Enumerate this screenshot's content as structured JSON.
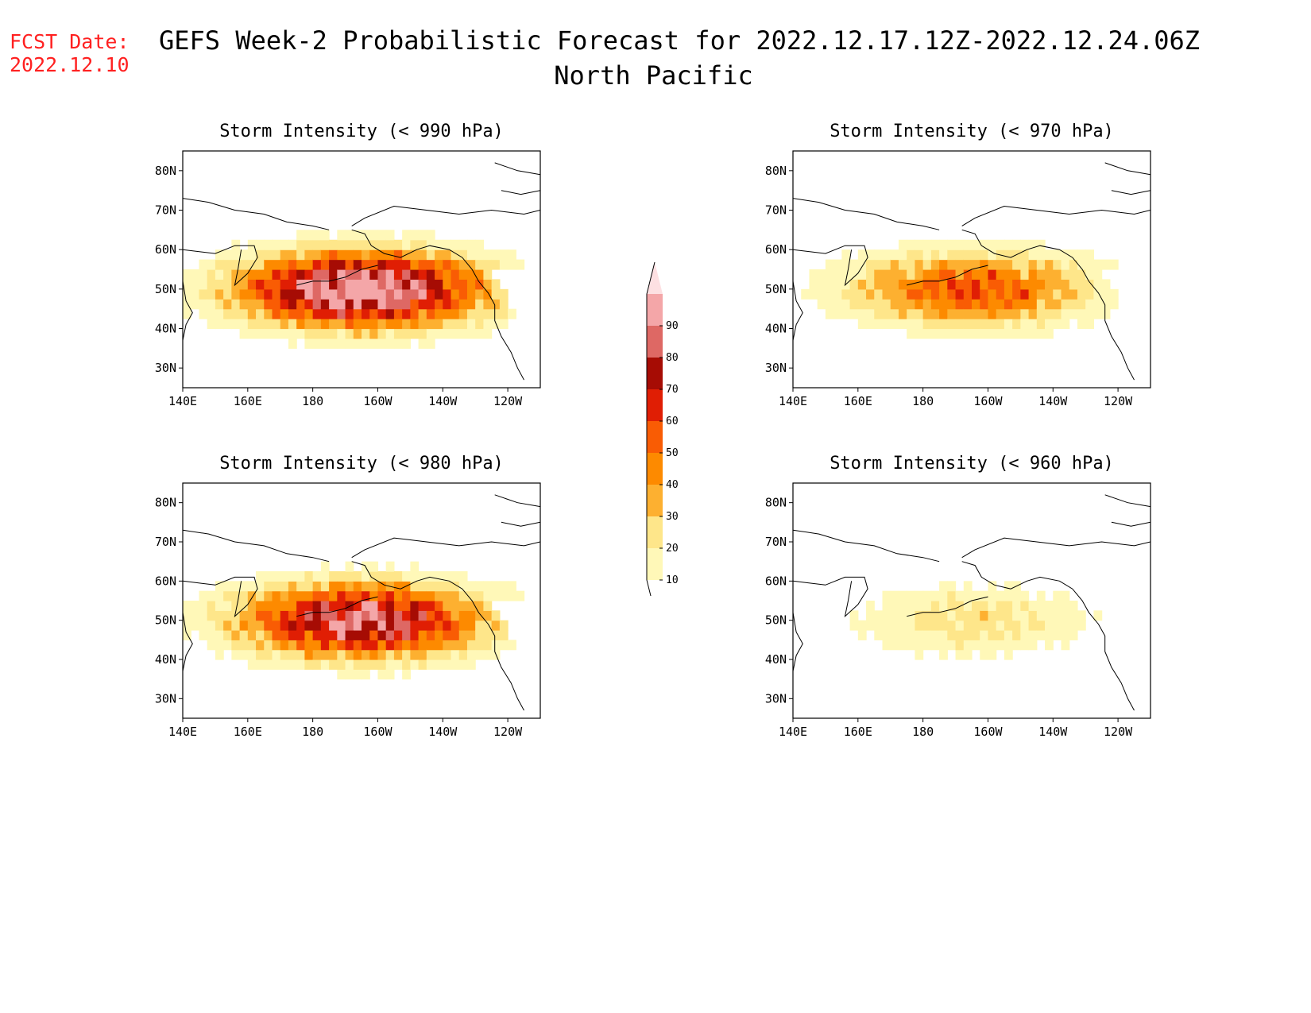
{
  "fcst_label": "FCST Date:",
  "fcst_date": "2022.12.10",
  "title_line1": "GEFS Week-2 Probabilistic Forecast for 2022.12.17.12Z-2022.12.24.06Z",
  "title_line2": "North Pacific",
  "lat_ticks": [
    "80N",
    "70N",
    "60N",
    "50N",
    "40N",
    "30N"
  ],
  "lon_ticks": [
    "140E",
    "160E",
    "180",
    "160W",
    "140W",
    "120W"
  ],
  "colorbar": {
    "levels": [
      "10",
      "20",
      "30",
      "40",
      "50",
      "60",
      "70",
      "80",
      "90"
    ],
    "colors": [
      "#fff8b8",
      "#fee68a",
      "#fdb030",
      "#fd8a00",
      "#f95c04",
      "#e01e04",
      "#a60c04",
      "#de6864",
      "#f4a6a8",
      "#fde0e2"
    ]
  },
  "chart_data": [
    {
      "type": "map",
      "title": "Storm Intensity (< 990 hPa)",
      "xlim": [
        "140E",
        "110W"
      ],
      "ylim": [
        "25N",
        "85N"
      ],
      "legend": "shared colorbar, center",
      "max_probability_percent": 90
    },
    {
      "type": "map",
      "title": "Storm Intensity (< 970 hPa)",
      "xlim": [
        "140E",
        "110W"
      ],
      "ylim": [
        "25N",
        "85N"
      ],
      "legend": "shared colorbar, center",
      "max_probability_percent": 50
    },
    {
      "type": "map",
      "title": "Storm Intensity (< 980 hPa)",
      "xlim": [
        "140E",
        "110W"
      ],
      "ylim": [
        "25N",
        "85N"
      ],
      "legend": "shared colorbar, center",
      "max_probability_percent": 80
    },
    {
      "type": "map",
      "title": "Storm Intensity (< 960 hPa)",
      "xlim": [
        "140E",
        "110W"
      ],
      "ylim": [
        "25N",
        "85N"
      ],
      "legend": "shared colorbar, center",
      "max_probability_percent": 20
    }
  ]
}
